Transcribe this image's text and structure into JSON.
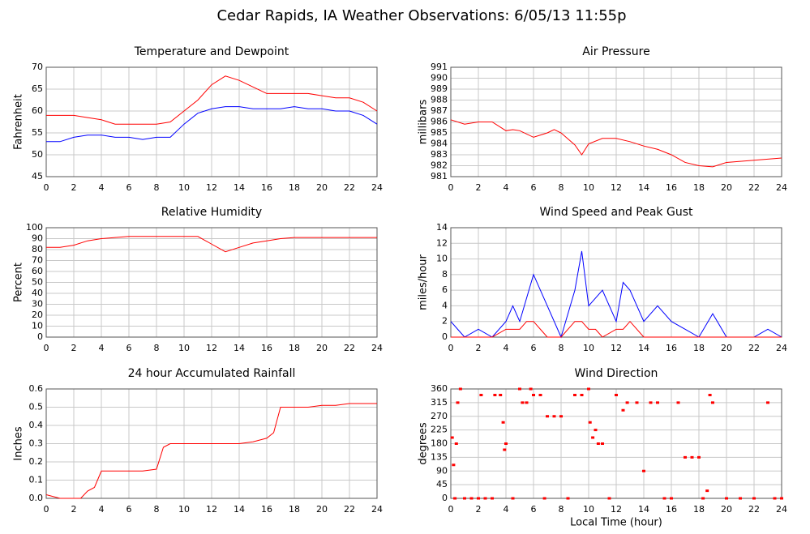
{
  "title": "Cedar Rapids, IA Weather Observations: 6/05/13 11:55p",
  "chart_data": [
    {
      "type": "line",
      "title": "Temperature and Dewpoint",
      "ylabel": "Fahrenheit",
      "x": [
        0,
        1,
        2,
        3,
        4,
        5,
        6,
        7,
        8,
        9,
        10,
        11,
        12,
        13,
        14,
        15,
        16,
        17,
        18,
        19,
        20,
        21,
        22,
        23,
        24
      ],
      "series": [
        {
          "color": "#ff0000",
          "values": [
            59,
            59,
            59,
            58.5,
            58,
            57,
            57,
            57,
            57,
            57.5,
            60,
            62.5,
            66,
            68,
            67,
            65.5,
            64,
            64,
            64,
            64,
            63.5,
            63,
            63,
            62,
            60
          ]
        },
        {
          "color": "#0000ff",
          "values": [
            53,
            53,
            54,
            54.5,
            54.5,
            54,
            54,
            53.5,
            54,
            54,
            57,
            59.5,
            60.5,
            61,
            61,
            60.5,
            60.5,
            60.5,
            61,
            60.5,
            60.5,
            60,
            60,
            59,
            57
          ]
        }
      ],
      "xlim": [
        0,
        24
      ],
      "xticks": [
        0,
        2,
        4,
        6,
        8,
        10,
        12,
        14,
        16,
        18,
        20,
        22,
        24
      ],
      "ylim": [
        45,
        70
      ],
      "yticks": [
        45,
        50,
        55,
        60,
        65,
        70
      ],
      "grid": true
    },
    {
      "type": "line",
      "title": "Air Pressure",
      "ylabel": "millibars",
      "x": [
        0,
        1,
        2,
        3,
        4,
        4.5,
        5,
        6,
        7,
        7.5,
        8,
        9,
        9.5,
        10,
        11,
        12,
        13,
        14,
        15,
        16,
        17,
        18,
        19,
        20,
        21,
        22,
        23,
        24
      ],
      "series": [
        {
          "color": "#ff0000",
          "values": [
            986.2,
            985.8,
            986,
            986,
            985.2,
            985.3,
            985.2,
            984.6,
            985,
            985.3,
            985,
            983.9,
            983,
            984,
            984.5,
            984.5,
            984.2,
            983.8,
            983.5,
            983,
            982.3,
            982,
            981.9,
            982.3,
            982.4,
            982.5,
            982.6,
            982.7
          ]
        }
      ],
      "xlim": [
        0,
        24
      ],
      "xticks": [
        0,
        2,
        4,
        6,
        8,
        10,
        12,
        14,
        16,
        18,
        20,
        22,
        24
      ],
      "ylim": [
        981,
        991
      ],
      "yticks": [
        981,
        982,
        983,
        984,
        985,
        986,
        987,
        988,
        989,
        990,
        991
      ],
      "grid": true
    },
    {
      "type": "line",
      "title": "Relative Humidity",
      "ylabel": "Percent",
      "x": [
        0,
        1,
        2,
        3,
        4,
        5,
        6,
        7,
        8,
        9,
        10,
        11,
        12,
        13,
        14,
        15,
        16,
        17,
        18,
        19,
        20,
        21,
        22,
        23,
        24
      ],
      "series": [
        {
          "color": "#ff0000",
          "values": [
            82,
            82,
            84,
            88,
            90,
            91,
            92,
            92,
            92,
            92,
            92,
            92,
            85,
            78,
            82,
            86,
            88,
            90,
            91,
            91,
            91,
            91,
            91,
            91,
            91
          ]
        }
      ],
      "xlim": [
        0,
        24
      ],
      "xticks": [
        0,
        2,
        4,
        6,
        8,
        10,
        12,
        14,
        16,
        18,
        20,
        22,
        24
      ],
      "ylim": [
        0,
        100
      ],
      "yticks": [
        0,
        10,
        20,
        30,
        40,
        50,
        60,
        70,
        80,
        90,
        100
      ],
      "grid": true
    },
    {
      "type": "line",
      "title": "Wind Speed and Peak Gust",
      "ylabel": "miles/hour",
      "x": [
        0,
        0.5,
        1,
        2,
        3,
        4,
        4.5,
        5,
        5.5,
        6,
        6.5,
        7,
        8,
        9,
        9.5,
        10,
        10.5,
        11,
        12,
        12.5,
        13,
        14,
        15,
        16,
        17,
        18,
        19,
        20,
        21,
        22,
        23,
        24
      ],
      "series": [
        {
          "color": "#0000ff",
          "values": [
            2,
            1,
            0,
            1,
            0,
            2,
            4,
            2,
            5,
            8,
            6,
            4,
            0,
            6,
            11,
            4,
            5,
            6,
            2,
            7,
            6,
            2,
            4,
            2,
            1,
            0,
            3,
            0,
            0,
            0,
            1,
            0
          ]
        },
        {
          "color": "#ff0000",
          "values": [
            0,
            0,
            0,
            0,
            0,
            1,
            1,
            1,
            2,
            2,
            1,
            0,
            0,
            2,
            2,
            1,
            1,
            0,
            1,
            1,
            2,
            0,
            0,
            0,
            0,
            0,
            0,
            0,
            0,
            0,
            0,
            0
          ]
        }
      ],
      "xlim": [
        0,
        24
      ],
      "xticks": [
        0,
        2,
        4,
        6,
        8,
        10,
        12,
        14,
        16,
        18,
        20,
        22,
        24
      ],
      "ylim": [
        0,
        14
      ],
      "yticks": [
        0,
        2,
        4,
        6,
        8,
        10,
        12,
        14
      ],
      "grid": true
    },
    {
      "type": "line",
      "title": "24 hour Accumulated Rainfall",
      "ylabel": "Inches",
      "x": [
        0,
        1,
        2,
        2.5,
        3,
        3.5,
        4,
        5,
        6,
        7,
        8,
        8.5,
        9,
        10,
        11,
        12,
        13,
        14,
        15,
        16,
        16.5,
        17,
        18,
        19,
        20,
        21,
        22,
        23,
        24
      ],
      "series": [
        {
          "color": "#ff0000",
          "values": [
            0.02,
            0,
            0,
            0,
            0.04,
            0.06,
            0.15,
            0.15,
            0.15,
            0.15,
            0.16,
            0.28,
            0.3,
            0.3,
            0.3,
            0.3,
            0.3,
            0.3,
            0.31,
            0.33,
            0.36,
            0.5,
            0.5,
            0.5,
            0.51,
            0.51,
            0.52,
            0.52,
            0.52
          ]
        }
      ],
      "xlim": [
        0,
        24
      ],
      "xticks": [
        0,
        2,
        4,
        6,
        8,
        10,
        12,
        14,
        16,
        18,
        20,
        22,
        24
      ],
      "ylim": [
        0,
        0.6
      ],
      "yticks": [
        {
          "value": 0,
          "label": "0.0"
        },
        0.1,
        0.2,
        0.3,
        0.4,
        0.5,
        0.6
      ],
      "grid": true
    },
    {
      "type": "scatter",
      "title": "Wind Direction",
      "ylabel": "degrees",
      "xlabel": "Local Time (hour)",
      "x": [
        0.1,
        0.2,
        0.3,
        0.4,
        0.5,
        0.7,
        1,
        1.5,
        2,
        2.2,
        2.5,
        3,
        3.2,
        3.6,
        3.8,
        3.9,
        4,
        4.5,
        5,
        5.2,
        5.5,
        5.8,
        6,
        6.5,
        6.8,
        7,
        7.5,
        8,
        8.5,
        9,
        9.5,
        10,
        10.1,
        10.3,
        10.5,
        10.7,
        11,
        11.5,
        12,
        12.5,
        12.8,
        13.5,
        14,
        14.5,
        15,
        15.5,
        16,
        16.5,
        17,
        17.5,
        18,
        18.3,
        18.6,
        18.8,
        19,
        20,
        21,
        22,
        23,
        23.5,
        24
      ],
      "series": [
        {
          "color": "#ff0000",
          "values": [
            200,
            110,
            0,
            180,
            315,
            360,
            0,
            0,
            0,
            340,
            0,
            0,
            340,
            340,
            250,
            160,
            180,
            0,
            360,
            315,
            315,
            360,
            340,
            340,
            0,
            270,
            270,
            270,
            0,
            340,
            340,
            360,
            250,
            200,
            225,
            180,
            180,
            0,
            340,
            290,
            315,
            315,
            90,
            315,
            315,
            0,
            0,
            315,
            135,
            135,
            135,
            0,
            25,
            340,
            315,
            0,
            0,
            0,
            315,
            0,
            0
          ]
        }
      ],
      "xlim": [
        0,
        24
      ],
      "xticks": [
        0,
        2,
        4,
        6,
        8,
        10,
        12,
        14,
        16,
        18,
        20,
        22,
        24
      ],
      "ylim": [
        0,
        360
      ],
      "yticks": [
        0,
        45,
        90,
        135,
        180,
        225,
        270,
        315,
        360
      ],
      "grid": true
    }
  ]
}
